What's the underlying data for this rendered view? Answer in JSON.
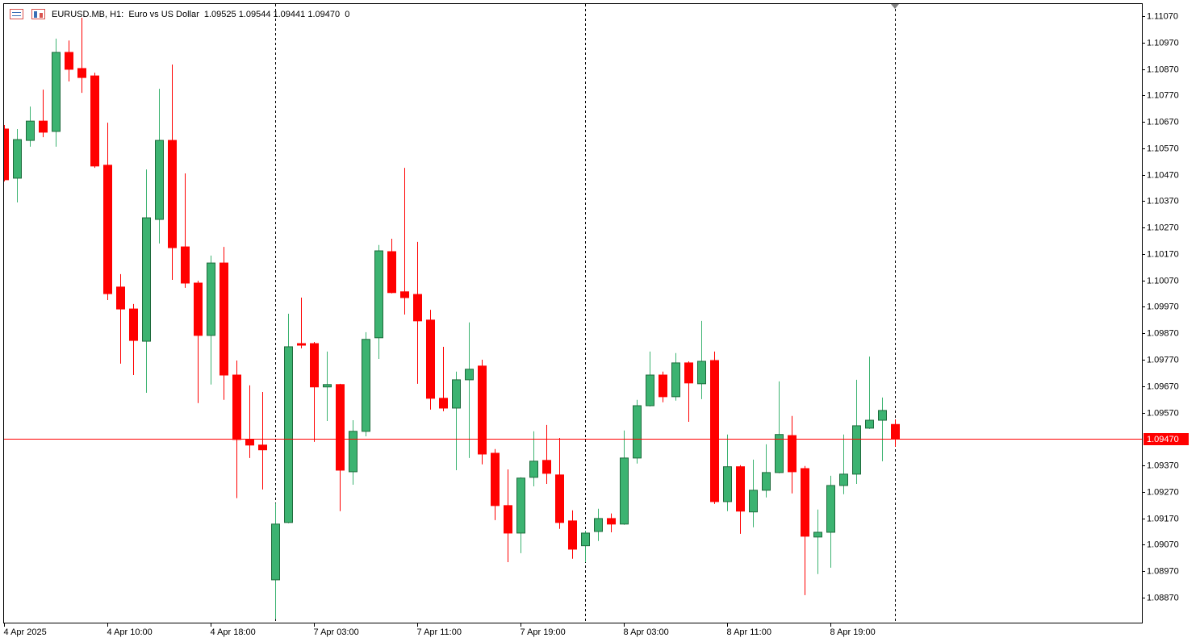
{
  "chart_data": {
    "type": "candlestick",
    "title": "EURUSD.MB, H1:  Euro vs US Dollar  1.09525 1.09544 1.09441 1.09470  0",
    "categories": [
      "4 Apr 2025",
      null,
      null,
      null,
      null,
      null,
      null,
      null,
      "4 Apr 10:00",
      null,
      null,
      null,
      null,
      null,
      null,
      null,
      "4 Apr 18:00",
      null,
      null,
      null,
      null,
      null,
      null,
      null,
      "7 Apr 03:00",
      null,
      null,
      null,
      null,
      null,
      null,
      null,
      "7 Apr 11:00",
      null,
      null,
      null,
      null,
      null,
      null,
      null,
      "7 Apr 19:00",
      null,
      null,
      null,
      null,
      null,
      null,
      null,
      "8 Apr 03:00",
      null,
      null,
      null,
      null,
      null,
      null,
      null,
      "8 Apr 11:00",
      null,
      null,
      null,
      null,
      null,
      null,
      null,
      "8 Apr 19:00",
      null,
      null,
      null,
      null,
      null
    ],
    "open": [
      1.10643,
      1.10457,
      1.106,
      1.10673,
      1.10634,
      1.10933,
      1.10872,
      1.10844,
      1.10506,
      1.10045,
      1.09962,
      1.0984,
      1.10301,
      1.106,
      1.10197,
      1.1006,
      1.09862,
      1.10136,
      1.09712,
      1.09468,
      1.09447,
      1.08937,
      1.09154,
      1.09831,
      1.09831,
      1.09667,
      1.09676,
      1.09346,
      1.09499,
      1.09853,
      1.10179,
      1.10027,
      1.10017,
      1.0992,
      1.09624,
      1.09587,
      1.09694,
      1.09746,
      1.09416,
      1.09218,
      1.09114,
      1.09325,
      1.09389,
      1.09334,
      1.0916,
      1.09066,
      1.0912,
      1.09169,
      1.09148,
      1.09398,
      1.09596,
      1.09712,
      1.0963,
      1.09758,
      1.09679,
      1.09767,
      1.09233,
      1.09365,
      1.09194,
      1.09276,
      1.09343,
      1.09483,
      1.09358,
      1.09099,
      1.09117,
      1.09294,
      1.09337,
      1.09511,
      1.09541,
      1.09525
    ],
    "high": [
      1.10658,
      1.10643,
      1.10728,
      1.10792,
      1.10985,
      1.10978,
      1.11064,
      1.10856,
      1.10667,
      1.10094,
      1.09981,
      1.1049,
      1.10795,
      1.10887,
      1.10475,
      1.10069,
      1.10164,
      1.10197,
      1.09767,
      1.09673,
      1.09648,
      1.09227,
      1.09944,
      1.10005,
      1.09837,
      1.09801,
      1.09679,
      1.09541,
      1.09874,
      1.10204,
      1.10228,
      1.10496,
      1.10216,
      1.09959,
      1.09819,
      1.09725,
      1.09911,
      1.0977,
      1.09432,
      1.09355,
      1.09325,
      1.09499,
      1.09523,
      1.09474,
      1.092,
      1.09123,
      1.09206,
      1.09188,
      1.09502,
      1.09618,
      1.09801,
      1.09725,
      1.09795,
      1.09764,
      1.09917,
      1.09801,
      1.09487,
      1.09371,
      1.09392,
      1.0945,
      1.09688,
      1.09557,
      1.09368,
      1.09203,
      1.09331,
      1.09487,
      1.09694,
      1.09782,
      1.09627,
      1.09544
    ],
    "low": [
      1.10445,
      1.10365,
      1.10576,
      1.10612,
      1.10576,
      1.10823,
      1.1078,
      1.10496,
      1.09996,
      1.09755,
      1.09712,
      1.09645,
      1.1021,
      1.10072,
      1.10042,
      1.09606,
      1.09676,
      1.09618,
      1.09246,
      1.09398,
      1.09279,
      1.08788,
      1.09151,
      1.09813,
      1.09459,
      1.09538,
      1.09197,
      1.09297,
      1.0948,
      1.09773,
      1.10021,
      1.09941,
      1.09679,
      1.09581,
      1.09575,
      1.09352,
      1.09398,
      1.09374,
      1.09163,
      1.09004,
      1.09038,
      1.09291,
      1.093,
      1.0913,
      1.09017,
      1.09004,
      1.09084,
      1.09117,
      1.09145,
      1.09377,
      1.09593,
      1.09609,
      1.09615,
      1.09535,
      1.09621,
      1.09224,
      1.09197,
      1.09111,
      1.09136,
      1.09249,
      1.0934,
      1.09264,
      1.08879,
      1.08959,
      1.08983,
      1.09261,
      1.093,
      1.09508,
      1.09386,
      1.09441
    ],
    "close": [
      1.10451,
      1.10603,
      1.10673,
      1.10631,
      1.10933,
      1.10869,
      1.10838,
      1.10503,
      1.1002,
      1.09962,
      1.09843,
      1.10307,
      1.106,
      1.10194,
      1.1006,
      1.09862,
      1.10136,
      1.09712,
      1.09468,
      1.09447,
      1.09429,
      1.09148,
      1.09819,
      1.09825,
      1.09667,
      1.09676,
      1.09352,
      1.09499,
      1.09847,
      1.10182,
      1.10024,
      1.10005,
      1.09917,
      1.09624,
      1.09587,
      1.09694,
      1.09734,
      1.09413,
      1.09218,
      1.09114,
      1.09322,
      1.09386,
      1.0934,
      1.09154,
      1.09053,
      1.09114,
      1.09169,
      1.09148,
      1.09398,
      1.09596,
      1.09712,
      1.0963,
      1.09758,
      1.09682,
      1.09764,
      1.09233,
      1.09365,
      1.09197,
      1.09276,
      1.09343,
      1.09487,
      1.09346,
      1.09102,
      1.09117,
      1.09294,
      1.09337,
      1.0952,
      1.09541,
      1.09578,
      1.0947
    ],
    "up_color": "#3cb371",
    "down_color": "#ff0000",
    "bid_line": {
      "value": 1.0947,
      "label": "1.09470",
      "color": "#ff0000"
    },
    "ylim": [
      1.08775,
      1.11116
    ],
    "yticks": [
      {
        "value": 1.1107,
        "label": "1.11070"
      },
      {
        "value": 1.1097,
        "label": "1.10970"
      },
      {
        "value": 1.1087,
        "label": "1.10870"
      },
      {
        "value": 1.1077,
        "label": "1.10770"
      },
      {
        "value": 1.1067,
        "label": "1.10670"
      },
      {
        "value": 1.1057,
        "label": "1.10570"
      },
      {
        "value": 1.1047,
        "label": "1.10470"
      },
      {
        "value": 1.1037,
        "label": "1.10370"
      },
      {
        "value": 1.1027,
        "label": "1.10270"
      },
      {
        "value": 1.1017,
        "label": "1.10170"
      },
      {
        "value": 1.1007,
        "label": "1.10070"
      },
      {
        "value": 1.0997,
        "label": "1.09970"
      },
      {
        "value": 1.0987,
        "label": "1.09870"
      },
      {
        "value": 1.0977,
        "label": "1.09770"
      },
      {
        "value": 1.0967,
        "label": "1.09670"
      },
      {
        "value": 1.0957,
        "label": "1.09570"
      },
      {
        "value": 1.0937,
        "label": "1.09370"
      },
      {
        "value": 1.0927,
        "label": "1.09270"
      },
      {
        "value": 1.0917,
        "label": "1.09170"
      },
      {
        "value": 1.0907,
        "label": "1.09070"
      },
      {
        "value": 1.0897,
        "label": "1.08970"
      },
      {
        "value": 1.0887,
        "label": "1.08870"
      }
    ],
    "grid": false
  }
}
